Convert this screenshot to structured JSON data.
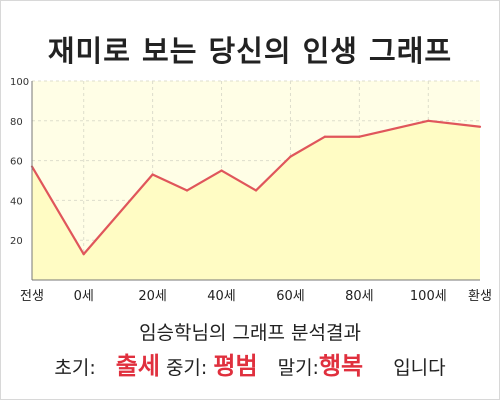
{
  "title": "재미로 보는 당신의 인생 그래프",
  "chart_data": {
    "type": "area",
    "ylim": [
      0,
      100
    ],
    "y_ticks": [
      20,
      40,
      60,
      80,
      100
    ],
    "xlim": [
      -15,
      115
    ],
    "x_ticks": [
      {
        "x": -15,
        "label": "전생"
      },
      {
        "x": 0,
        "label": "0세"
      },
      {
        "x": 20,
        "label": "20세"
      },
      {
        "x": 40,
        "label": "40세"
      },
      {
        "x": 60,
        "label": "60세"
      },
      {
        "x": 80,
        "label": "80세"
      },
      {
        "x": 100,
        "label": "100세"
      },
      {
        "x": 115,
        "label": "환생"
      }
    ],
    "grid": true,
    "points": [
      {
        "x": -15,
        "y": 57
      },
      {
        "x": 0,
        "y": 13
      },
      {
        "x": 20,
        "y": 53
      },
      {
        "x": 30,
        "y": 45
      },
      {
        "x": 40,
        "y": 55
      },
      {
        "x": 50,
        "y": 45
      },
      {
        "x": 60,
        "y": 62
      },
      {
        "x": 70,
        "y": 72
      },
      {
        "x": 80,
        "y": 72
      },
      {
        "x": 100,
        "y": 80
      },
      {
        "x": 115,
        "y": 77
      }
    ],
    "colors": {
      "line": "#e0565b",
      "fill": "#fffcc4",
      "grid": "#ddddcc",
      "plot_bg": "#fffee6"
    }
  },
  "result_title": "임승학님의 그래프 분석결과",
  "summary": {
    "early_label": "초기:",
    "early_value": "출세",
    "middle_label": "중기:",
    "middle_value": "평범",
    "late_label": "말기:",
    "late_value": "행복",
    "ending": "입니다"
  }
}
